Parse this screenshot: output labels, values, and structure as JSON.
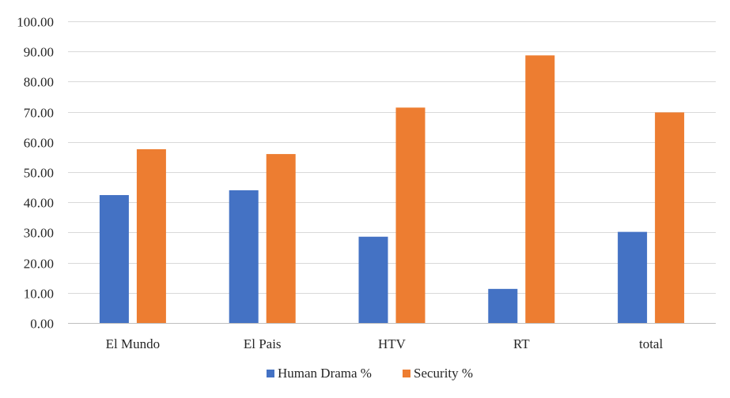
{
  "chart_data": {
    "type": "bar",
    "categories": [
      "El Mundo",
      "El Pais",
      "HTV",
      "RT",
      "total"
    ],
    "series": [
      {
        "name": "Human Drama %",
        "color": "#4472C4",
        "values": [
          42.4,
          44.0,
          28.6,
          11.3,
          30.2
        ]
      },
      {
        "name": "Security %",
        "color": "#ED7D31",
        "values": [
          57.6,
          56.0,
          71.4,
          88.7,
          69.8
        ]
      }
    ],
    "y_ticks": [
      "0.00",
      "10.00",
      "20.00",
      "30.00",
      "40.00",
      "50.00",
      "60.00",
      "70.00",
      "80.00",
      "90.00",
      "100.00"
    ],
    "ylim": [
      0,
      100
    ],
    "grid": true,
    "legend_position": "bottom",
    "title": "",
    "xlabel": "",
    "ylabel": ""
  }
}
